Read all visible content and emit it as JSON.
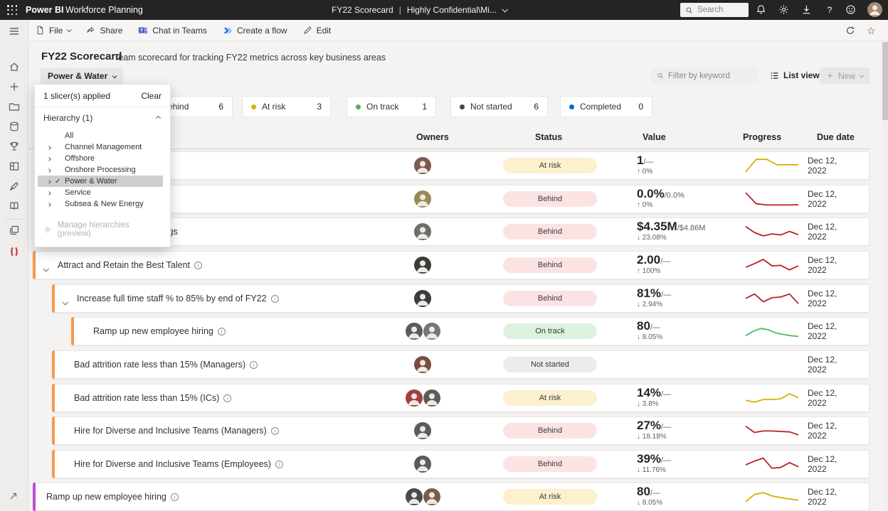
{
  "topbar": {
    "brand": "Power BI",
    "app_name": "Workforce Planning",
    "doc_title": "FY22 Scorecard",
    "separator": "|",
    "sensitivity": "Highly Confidential\\Mi...",
    "search_placeholder": "Search",
    "help_glyph": "?"
  },
  "toolbar": {
    "file": "File",
    "share": "Share",
    "chat": "Chat in Teams",
    "flow": "Create a flow",
    "edit": "Edit",
    "star_glyph": "☆"
  },
  "page": {
    "title": "FY22 Scorecard",
    "subtitle": "Team scorecard for tracking FY22 metrics across key business areas"
  },
  "slicer": {
    "button_label": "Power & Water",
    "panel": {
      "applied_text": "1 slicer(s) applied",
      "clear_label": "Clear",
      "section_label": "Hierarchy (1)",
      "items": [
        {
          "label": "All",
          "expandable": false,
          "selected": false
        },
        {
          "label": "Channel Management",
          "expandable": true,
          "selected": false
        },
        {
          "label": "Offshore",
          "expandable": true,
          "selected": false
        },
        {
          "label": "Onshore Processing",
          "expandable": true,
          "selected": false
        },
        {
          "label": "Power & Water",
          "expandable": true,
          "selected": true
        },
        {
          "label": "Service",
          "expandable": true,
          "selected": false
        },
        {
          "label": "Subsea & New Energy",
          "expandable": true,
          "selected": false
        }
      ],
      "footer_label": "Manage hierarchies (preview)"
    }
  },
  "controls": {
    "filter_placeholder": "Filter by keyword",
    "list_view_label": "List view",
    "new_label": "New"
  },
  "status_summary": [
    {
      "label": "Behind",
      "count": "6",
      "dot": "#d13438"
    },
    {
      "label": "At risk",
      "count": "3",
      "dot": "#d9b300"
    },
    {
      "label": "On track",
      "count": "1",
      "dot": "#4db058"
    },
    {
      "label": "Not started",
      "count": "6",
      "dot": "#484644"
    },
    {
      "label": "Completed",
      "count": "0",
      "dot": "#0b69cb"
    }
  ],
  "status_styles": {
    "At risk": {
      "bg": "#fcf0cd"
    },
    "Behind": {
      "bg": "#fbe3e4"
    },
    "On track": {
      "bg": "#ddf2de"
    },
    "Not started": {
      "bg": "#ececec"
    }
  },
  "table": {
    "headers": [
      "Owners",
      "Status",
      "Value",
      "Progress",
      "Due date"
    ],
    "rows": [
      {
        "name": "",
        "level": 2,
        "bar": "#25b6d8",
        "chevron": false,
        "info": false,
        "owners": [
          {
            "color": "#7d5a4e"
          }
        ],
        "status": "At risk",
        "value": {
          "main": "1",
          "target": "—",
          "delta_dir": "up",
          "delta": "0%"
        },
        "spark": {
          "color": "#d9ae00",
          "points": [
            0.08,
            0.92,
            0.92,
            0.55,
            0.55,
            0.55
          ]
        },
        "due": "Dec 12, 2022"
      },
      {
        "name": "",
        "level": 2,
        "bar": "#25b6d8",
        "chevron": false,
        "info": false,
        "owners": [
          {
            "color": "#9c8a56"
          }
        ],
        "status": "Behind",
        "value": {
          "main": "0.0%",
          "target": "0.0%",
          "delta_dir": "up",
          "delta": "0%"
        },
        "spark": {
          "color": "#bc1f26",
          "points": [
            0.92,
            0.18,
            0.1,
            0.1,
            0.1,
            0.12
          ]
        },
        "due": "Dec 12, 2022"
      },
      {
        "name": "Accessibility trainings",
        "level": 2,
        "bar": "#25b6d8",
        "chevron": false,
        "info": false,
        "owners": [
          {
            "color": "#6e6e6e"
          }
        ],
        "status": "Behind",
        "value": {
          "main": "$4.35M",
          "target": "$4.86M",
          "delta_dir": "down",
          "delta": "23.08%"
        },
        "spark": {
          "color": "#bc1f26",
          "points": [
            0.85,
            0.45,
            0.22,
            0.35,
            0.28,
            0.52,
            0.3
          ]
        },
        "due": "Dec 12, 2022"
      },
      {
        "name": "Attract and Retain the Best Talent",
        "level": 0,
        "bar": "#f79a4f",
        "chevron": true,
        "info": true,
        "owners": [
          {
            "color": "#3c3c3c"
          }
        ],
        "status": "Behind",
        "value": {
          "main": "2.00",
          "target": "—",
          "delta_dir": "up",
          "delta": "100%"
        },
        "spark": {
          "color": "#bc1f26",
          "points": [
            0.35,
            0.6,
            0.88,
            0.45,
            0.48,
            0.18,
            0.45
          ]
        },
        "due": "Dec 12, 2022"
      },
      {
        "name": "Increase full time staff % to 85% by end of FY22",
        "level": 1,
        "bar": "#f79a4f",
        "chevron": true,
        "info": true,
        "owners": [
          {
            "color": "#3c3c3c"
          }
        ],
        "status": "Behind",
        "value": {
          "main": "81%",
          "target": "—",
          "delta_dir": "down",
          "delta": "2.94%"
        },
        "spark": {
          "color": "#bc1f26",
          "points": [
            0.5,
            0.8,
            0.28,
            0.55,
            0.6,
            0.8,
            0.15
          ]
        },
        "due": "Dec 12, 2022"
      },
      {
        "name": "Ramp up new employee hiring",
        "level": 2,
        "bar": "#f79a4f",
        "chevron": false,
        "info": true,
        "owners": [
          {
            "color": "#5b5b5b"
          },
          {
            "color": "#767674"
          }
        ],
        "status": "On track",
        "value": {
          "main": "80",
          "target": "—",
          "delta_dir": "down",
          "delta": "8.05%"
        },
        "spark": {
          "color": "#54b765",
          "points": [
            0.2,
            0.5,
            0.68,
            0.6,
            0.38,
            0.28,
            0.2,
            0.15
          ]
        },
        "due": "Dec 12, 2022"
      },
      {
        "name": "Bad attrition rate less than 15% (Managers)",
        "level": 1,
        "bar": "#f79a4f",
        "chevron": false,
        "info": true,
        "owners": [
          {
            "color": "#7a4d3f"
          }
        ],
        "status": "Not started",
        "value": null,
        "spark": null,
        "due": "Dec 12, 2022"
      },
      {
        "name": "Bad attrition rate less than 15% (ICs)",
        "level": 1,
        "bar": "#f79a4f",
        "chevron": false,
        "info": true,
        "owners": [
          {
            "color": "#a33f3f"
          },
          {
            "color": "#5b5b5b"
          }
        ],
        "status": "At risk",
        "value": {
          "main": "14%",
          "target": "—",
          "delta_dir": "down",
          "delta": "3.8%"
        },
        "spark": {
          "color": "#d9ae00",
          "points": [
            0.35,
            0.22,
            0.4,
            0.4,
            0.45,
            0.78,
            0.52
          ]
        },
        "due": "Dec 12, 2022"
      },
      {
        "name": "Hire for Diverse and Inclusive Teams (Managers)",
        "level": 1,
        "bar": "#f79a4f",
        "chevron": false,
        "info": true,
        "owners": [
          {
            "color": "#5b5b5b"
          }
        ],
        "status": "Behind",
        "value": {
          "main": "27%",
          "target": "—",
          "delta_dir": "down",
          "delta": "18.18%"
        },
        "spark": {
          "color": "#bc1f26",
          "points": [
            0.8,
            0.38,
            0.48,
            0.48,
            0.45,
            0.42,
            0.22
          ]
        },
        "due": "Dec 12, 2022"
      },
      {
        "name": "Hire for Diverse and Inclusive Teams (Employees)",
        "level": 1,
        "bar": "#f79a4f",
        "chevron": false,
        "info": true,
        "owners": [
          {
            "color": "#5b5b5b"
          }
        ],
        "status": "Behind",
        "value": {
          "main": "39%",
          "target": "—",
          "delta_dir": "down",
          "delta": "11.76%"
        },
        "spark": {
          "color": "#bc1f26",
          "points": [
            0.45,
            0.7,
            0.9,
            0.22,
            0.28,
            0.6,
            0.32
          ]
        },
        "due": "Dec 12, 2022"
      },
      {
        "name": "Ramp up new employee hiring",
        "level": 0,
        "bar": "#bb4fd1",
        "chevron": false,
        "info": true,
        "owners": [
          {
            "color": "#4a4a4a"
          },
          {
            "color": "#7d5a4e"
          }
        ],
        "status": "At risk",
        "value": {
          "main": "80",
          "target": "—",
          "delta_dir": "down",
          "delta": "8.05%"
        },
        "spark": {
          "color": "#d9ae00",
          "points": [
            0.18,
            0.65,
            0.78,
            0.55,
            0.45,
            0.35,
            0.28
          ]
        },
        "due": "Dec 12, 2022"
      }
    ]
  }
}
